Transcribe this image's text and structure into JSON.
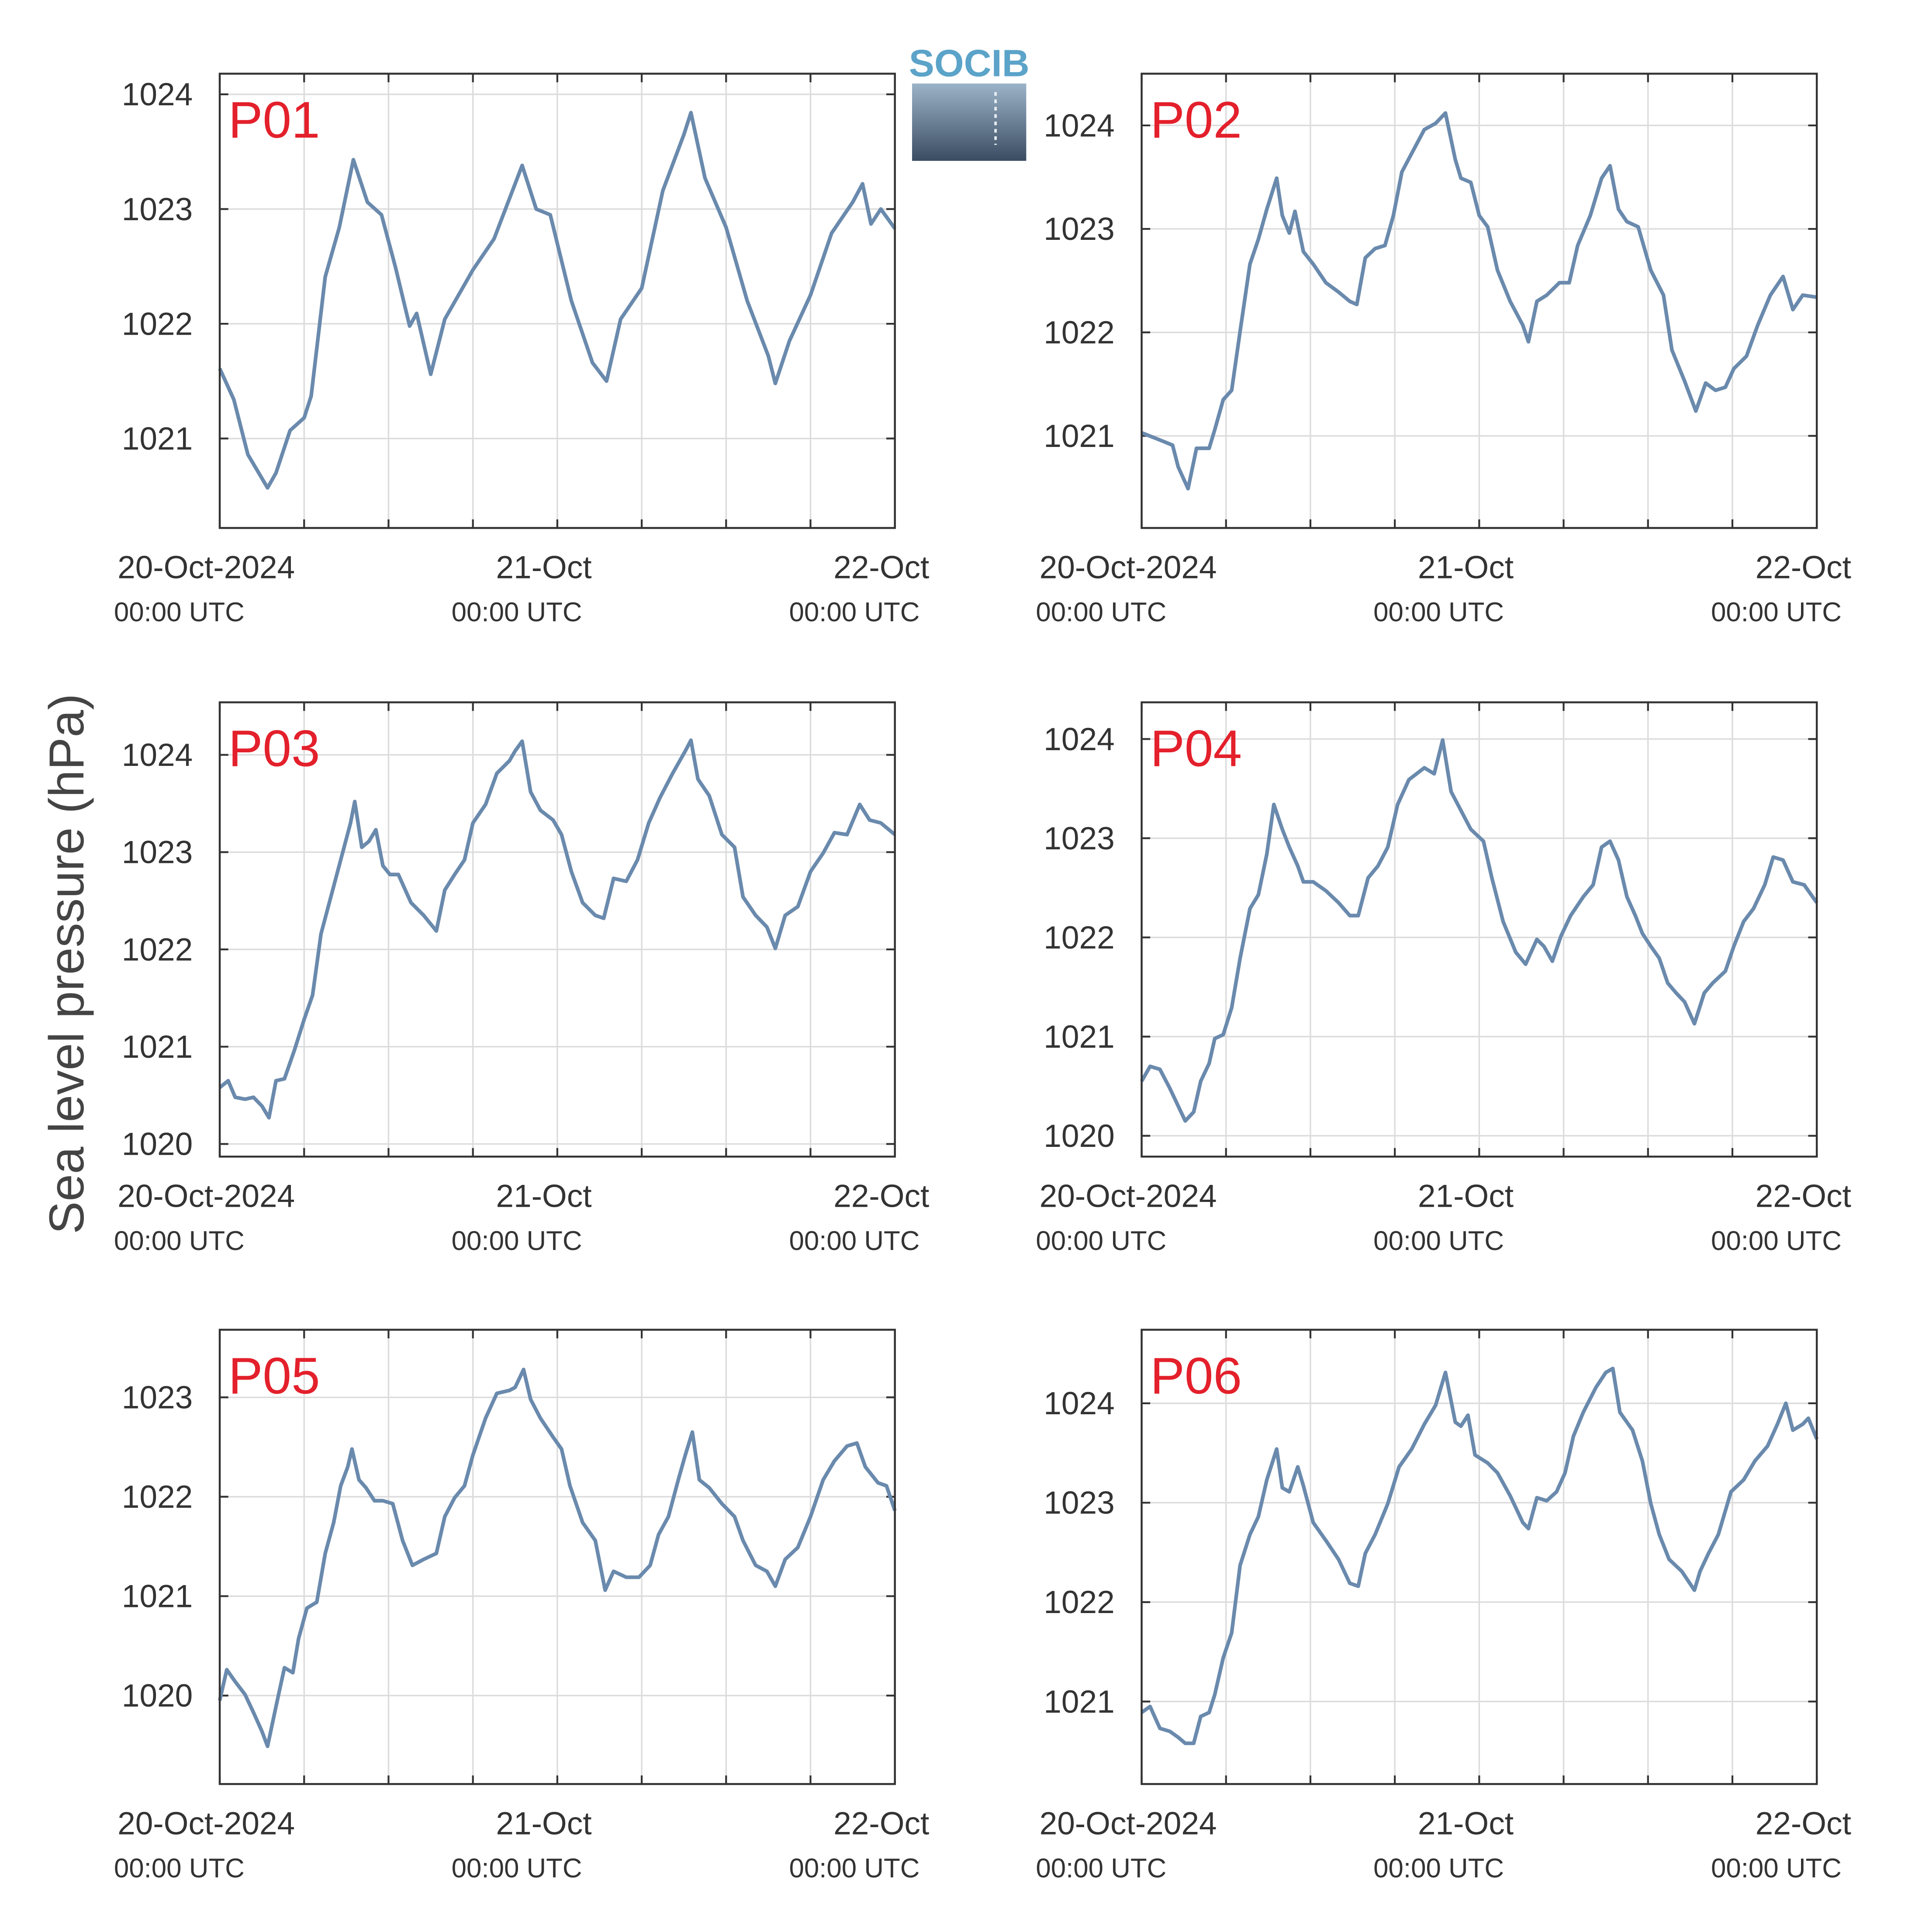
{
  "ylabel": "Sea level pressure (hPa)",
  "logo": "SOCIB",
  "chart_data": [
    {
      "type": "line",
      "title": "P01",
      "x": [
        0,
        1,
        2,
        3.4,
        4,
        5,
        6,
        6.5,
        7.5,
        8.5,
        9.5,
        10.5,
        11.5,
        12.5,
        13.5,
        14,
        15,
        16,
        18,
        19.5,
        21,
        21.5,
        22.5,
        23.5,
        25,
        26.5,
        27.5,
        28.5,
        30,
        31.5,
        33,
        33.5,
        34.5,
        36,
        37.5,
        39,
        39.5,
        40.5,
        42,
        43.5,
        45,
        45.7,
        46.3,
        47,
        48
      ],
      "series": [
        {
          "color": "#6a8aad",
          "values": [
            1021.61,
            1021.34,
            1020.86,
            1020.57,
            1020.7,
            1021.07,
            1021.18,
            1021.37,
            1022.41,
            1022.84,
            1023.43,
            1023.06,
            1022.95,
            1022.49,
            1021.98,
            1022.09,
            1021.56,
            1022.04,
            1022.47,
            1022.74,
            1023.22,
            1023.38,
            1023.0,
            1022.95,
            1022.2,
            1021.66,
            1021.5,
            1022.04,
            1022.31,
            1023.16,
            1023.65,
            1023.84,
            1023.27,
            1022.84,
            1022.2,
            1021.72,
            1021.48,
            1021.85,
            1022.25,
            1022.79,
            1023.06,
            1023.22,
            1022.87,
            1023.0,
            1022.83
          ]
        }
      ],
      "xlim": [
        0,
        48
      ],
      "xticks": [
        {
          "value": 0,
          "label": "20-Oct-2024",
          "sublabel": "00:00 UTC"
        },
        {
          "value": 24,
          "label": "21-Oct",
          "sublabel": "00:00 UTC"
        },
        {
          "value": 48,
          "label": "22-Oct",
          "sublabel": "00:00 UTC"
        }
      ],
      "xminorticks": [
        6,
        12,
        18,
        30,
        36,
        42
      ],
      "ylim": [
        1020.22,
        1024.18
      ],
      "yticks": [
        1021,
        1022,
        1023,
        1024
      ],
      "grid": true
    },
    {
      "type": "line",
      "title": "P02",
      "x": [
        0,
        1.3,
        2.2,
        2.6,
        3.3,
        3.9,
        4.8,
        5.2,
        5.8,
        6.4,
        7.0,
        7.7,
        8.3,
        8.9,
        9.6,
        10.0,
        10.5,
        10.9,
        11.5,
        12.2,
        13.1,
        14.0,
        14.8,
        15.3,
        15.9,
        16.6,
        17.3,
        17.9,
        18.5,
        19.2,
        20.1,
        20.9,
        21.6,
        22.3,
        22.7,
        23.4,
        24.0,
        24.6,
        25.3,
        26.2,
        27.1,
        27.5,
        28.1,
        28.8,
        29.7,
        30.4,
        31.0,
        31.9,
        32.7,
        33.3,
        33.9,
        34.5,
        35.3,
        36.2,
        37.1,
        37.7,
        38.6,
        39.4,
        40.1,
        40.8,
        41.5,
        42.1,
        43.0,
        43.8,
        44.7,
        45.6,
        46.3,
        47.0,
        48.0
      ],
      "series": [
        {
          "color": "#6a8aad",
          "values": [
            1021.03,
            1020.96,
            1020.91,
            1020.7,
            1020.49,
            1020.88,
            1020.88,
            1021.06,
            1021.35,
            1021.44,
            1022.01,
            1022.66,
            1022.9,
            1023.19,
            1023.49,
            1023.13,
            1022.96,
            1023.17,
            1022.78,
            1022.66,
            1022.48,
            1022.39,
            1022.3,
            1022.27,
            1022.72,
            1022.81,
            1022.84,
            1023.13,
            1023.55,
            1023.73,
            1023.96,
            1024.02,
            1024.12,
            1023.67,
            1023.49,
            1023.45,
            1023.13,
            1023.02,
            1022.6,
            1022.3,
            1022.07,
            1021.91,
            1022.3,
            1022.36,
            1022.48,
            1022.48,
            1022.84,
            1023.13,
            1023.49,
            1023.61,
            1023.19,
            1023.07,
            1023.02,
            1022.6,
            1022.36,
            1021.83,
            1021.53,
            1021.24,
            1021.51,
            1021.44,
            1021.47,
            1021.65,
            1021.77,
            1022.07,
            1022.36,
            1022.54,
            1022.22,
            1022.36,
            1022.34
          ]
        }
      ],
      "xlim": [
        0,
        48
      ],
      "xticks": [
        {
          "value": 0,
          "label": "20-Oct-2024",
          "sublabel": "00:00 UTC"
        },
        {
          "value": 24,
          "label": "21-Oct",
          "sublabel": "00:00 UTC"
        },
        {
          "value": 48,
          "label": "22-Oct",
          "sublabel": "00:00 UTC"
        }
      ],
      "xminorticks": [
        6,
        12,
        18,
        30,
        36,
        42
      ],
      "ylim": [
        1020.11,
        1024.5
      ],
      "yticks": [
        1021,
        1022,
        1023,
        1024
      ],
      "grid": true
    },
    {
      "type": "line",
      "title": "P03",
      "x": [
        0,
        0.6,
        1.1,
        1.8,
        2.4,
        3.0,
        3.5,
        4.0,
        4.6,
        5.3,
        6.0,
        6.6,
        7.2,
        7.9,
        8.6,
        9.3,
        9.6,
        10.1,
        10.6,
        11.1,
        11.6,
        12.1,
        12.7,
        13.6,
        14.5,
        15.4,
        16.0,
        16.7,
        17.4,
        18.0,
        18.9,
        19.7,
        20.6,
        21.0,
        21.5,
        22.1,
        22.8,
        23.7,
        24.3,
        25.0,
        25.8,
        26.7,
        27.3,
        28.0,
        28.9,
        29.7,
        30.5,
        31.3,
        32.2,
        33.1,
        33.5,
        34.0,
        34.8,
        35.7,
        36.6,
        37.2,
        38.1,
        38.9,
        39.5,
        40.2,
        41.1,
        42.0,
        42.9,
        43.7,
        44.6,
        45.5,
        46.2,
        47.0,
        48.0
      ],
      "series": [
        {
          "color": "#6a8aad",
          "values": [
            1020.58,
            1020.65,
            1020.48,
            1020.46,
            1020.48,
            1020.39,
            1020.27,
            1020.65,
            1020.67,
            1020.96,
            1021.28,
            1021.53,
            1022.16,
            1022.54,
            1022.92,
            1023.3,
            1023.52,
            1023.05,
            1023.11,
            1023.23,
            1022.86,
            1022.77,
            1022.77,
            1022.48,
            1022.35,
            1022.19,
            1022.61,
            1022.77,
            1022.92,
            1023.3,
            1023.49,
            1023.81,
            1023.94,
            1024.04,
            1024.14,
            1023.62,
            1023.43,
            1023.33,
            1023.18,
            1022.8,
            1022.48,
            1022.35,
            1022.32,
            1022.73,
            1022.7,
            1022.92,
            1023.3,
            1023.56,
            1023.81,
            1024.04,
            1024.15,
            1023.75,
            1023.58,
            1023.18,
            1023.05,
            1022.54,
            1022.35,
            1022.23,
            1022.01,
            1022.35,
            1022.44,
            1022.8,
            1022.99,
            1023.2,
            1023.18,
            1023.49,
            1023.33,
            1023.3,
            1023.18
          ]
        }
      ],
      "xlim": [
        0,
        48
      ],
      "xticks": [
        {
          "value": 0,
          "label": "20-Oct-2024",
          "sublabel": "00:00 UTC"
        },
        {
          "value": 24,
          "label": "21-Oct",
          "sublabel": "00:00 UTC"
        },
        {
          "value": 48,
          "label": "22-Oct",
          "sublabel": "00:00 UTC"
        }
      ],
      "xminorticks": [
        6,
        12,
        18,
        30,
        36,
        42
      ],
      "ylim": [
        1019.87,
        1024.54
      ],
      "yticks": [
        1020,
        1021,
        1022,
        1023,
        1024
      ],
      "grid": true
    },
    {
      "type": "line",
      "title": "P04",
      "x": [
        0,
        0.6,
        1.3,
        2.0,
        2.6,
        3.1,
        3.7,
        4.2,
        4.8,
        5.2,
        5.8,
        6.4,
        7.0,
        7.7,
        8.3,
        8.9,
        9.4,
        10.0,
        10.5,
        11.1,
        11.5,
        12.2,
        13.1,
        14.0,
        14.8,
        15.4,
        16.1,
        16.8,
        17.5,
        18.2,
        19.0,
        20.1,
        20.8,
        21.4,
        22.0,
        22.7,
        23.4,
        24.3,
        24.9,
        25.7,
        26.6,
        27.3,
        28.1,
        28.6,
        29.2,
        29.8,
        30.5,
        31.4,
        32.1,
        32.7,
        33.3,
        33.9,
        34.5,
        35.1,
        35.6,
        36.2,
        36.8,
        37.4,
        38.0,
        38.6,
        39.3,
        40.0,
        40.6,
        41.5,
        42.1,
        42.8,
        43.5,
        44.3,
        44.9,
        45.6,
        46.3,
        47.1,
        48.0
      ],
      "series": [
        {
          "color": "#6a8aad",
          "values": [
            1020.55,
            1020.7,
            1020.67,
            1020.48,
            1020.3,
            1020.15,
            1020.24,
            1020.55,
            1020.73,
            1020.98,
            1021.02,
            1021.29,
            1021.79,
            1022.29,
            1022.43,
            1022.84,
            1023.34,
            1023.09,
            1022.91,
            1022.72,
            1022.56,
            1022.56,
            1022.47,
            1022.35,
            1022.22,
            1022.22,
            1022.6,
            1022.72,
            1022.91,
            1023.34,
            1023.59,
            1023.71,
            1023.65,
            1023.99,
            1023.47,
            1023.28,
            1023.09,
            1022.97,
            1022.6,
            1022.16,
            1021.85,
            1021.73,
            1021.98,
            1021.91,
            1021.76,
            1022.01,
            1022.22,
            1022.41,
            1022.53,
            1022.91,
            1022.97,
            1022.78,
            1022.41,
            1022.22,
            1022.04,
            1021.91,
            1021.79,
            1021.54,
            1021.44,
            1021.35,
            1021.13,
            1021.44,
            1021.54,
            1021.66,
            1021.91,
            1022.16,
            1022.29,
            1022.53,
            1022.81,
            1022.78,
            1022.56,
            1022.53,
            1022.35
          ]
        }
      ],
      "xlim": [
        0,
        48
      ],
      "xticks": [
        {
          "value": 0,
          "label": "20-Oct-2024",
          "sublabel": "00:00 UTC"
        },
        {
          "value": 24,
          "label": "21-Oct",
          "sublabel": "00:00 UTC"
        },
        {
          "value": 48,
          "label": "22-Oct",
          "sublabel": "00:00 UTC"
        }
      ],
      "xminorticks": [
        6,
        12,
        18,
        30,
        36,
        42
      ],
      "ylim": [
        1019.79,
        1024.37
      ],
      "yticks": [
        1020,
        1021,
        1022,
        1023,
        1024
      ],
      "grid": true
    },
    {
      "type": "line",
      "title": "P05",
      "x": [
        0,
        0.5,
        1.1,
        1.8,
        2.4,
        3.0,
        3.4,
        4.0,
        4.6,
        5.2,
        5.6,
        6.2,
        6.9,
        7.5,
        8.1,
        8.6,
        9.1,
        9.4,
        9.9,
        10.4,
        11.0,
        11.6,
        12.3,
        13.0,
        13.7,
        14.5,
        15.4,
        16.0,
        16.7,
        17.4,
        18.0,
        18.9,
        19.7,
        20.6,
        21.0,
        21.6,
        22.1,
        22.8,
        23.7,
        24.3,
        24.9,
        25.8,
        26.7,
        27.4,
        28.0,
        28.9,
        29.8,
        30.6,
        31.2,
        31.9,
        32.6,
        33.1,
        33.6,
        34.1,
        34.8,
        35.7,
        36.6,
        37.2,
        38.1,
        38.9,
        39.5,
        40.2,
        41.1,
        42.0,
        42.9,
        43.7,
        44.6,
        45.3,
        45.9,
        46.8,
        47.4,
        48.0
      ],
      "series": [
        {
          "color": "#6a8aad",
          "values": [
            1019.95,
            1020.26,
            1020.14,
            1020.01,
            1019.83,
            1019.64,
            1019.49,
            1019.89,
            1020.28,
            1020.23,
            1020.57,
            1020.88,
            1020.94,
            1021.43,
            1021.74,
            1022.11,
            1022.3,
            1022.48,
            1022.17,
            1022.09,
            1021.96,
            1021.96,
            1021.93,
            1021.56,
            1021.31,
            1021.37,
            1021.43,
            1021.8,
            1021.99,
            1022.11,
            1022.42,
            1022.79,
            1023.04,
            1023.07,
            1023.1,
            1023.28,
            1022.98,
            1022.79,
            1022.6,
            1022.48,
            1022.11,
            1021.74,
            1021.56,
            1021.06,
            1021.25,
            1021.19,
            1021.19,
            1021.31,
            1021.62,
            1021.8,
            1022.17,
            1022.42,
            1022.65,
            1022.17,
            1022.09,
            1021.93,
            1021.8,
            1021.56,
            1021.31,
            1021.25,
            1021.1,
            1021.37,
            1021.49,
            1021.8,
            1022.17,
            1022.36,
            1022.51,
            1022.54,
            1022.3,
            1022.14,
            1022.11,
            1021.86
          ]
        }
      ],
      "xlim": [
        0,
        48
      ],
      "xticks": [
        {
          "value": 0,
          "label": "20-Oct-2024",
          "sublabel": "00:00 UTC"
        },
        {
          "value": 24,
          "label": "21-Oct",
          "sublabel": "00:00 UTC"
        },
        {
          "value": 48,
          "label": "22-Oct",
          "sublabel": "00:00 UTC"
        }
      ],
      "xminorticks": [
        6,
        12,
        18,
        30,
        36,
        42
      ],
      "ylim": [
        1019.11,
        1023.68
      ],
      "yticks": [
        1020,
        1021,
        1022,
        1023
      ],
      "grid": true
    },
    {
      "type": "line",
      "title": "P06",
      "x": [
        0,
        0.6,
        1.3,
        2.0,
        2.6,
        3.1,
        3.7,
        4.2,
        4.8,
        5.2,
        5.8,
        6.4,
        7.0,
        7.7,
        8.3,
        8.9,
        9.6,
        10.0,
        10.5,
        11.1,
        11.5,
        12.2,
        13.1,
        14.0,
        14.8,
        15.4,
        15.9,
        16.6,
        17.5,
        18.3,
        19.2,
        20.1,
        20.9,
        21.6,
        22.3,
        22.7,
        23.2,
        23.7,
        24.6,
        25.3,
        26.2,
        27.1,
        27.5,
        28.1,
        28.8,
        29.5,
        30.1,
        30.7,
        31.4,
        32.3,
        33.0,
        33.5,
        34.0,
        34.9,
        35.6,
        36.2,
        36.8,
        37.5,
        38.4,
        39.3,
        39.7,
        40.3,
        41.0,
        41.9,
        42.8,
        43.6,
        44.5,
        45.2,
        45.8,
        46.3,
        47.0,
        47.4,
        48.0
      ],
      "series": [
        {
          "color": "#6a8aad",
          "values": [
            1020.89,
            1020.95,
            1020.73,
            1020.7,
            1020.64,
            1020.58,
            1020.58,
            1020.85,
            1020.89,
            1021.07,
            1021.44,
            1021.69,
            1022.37,
            1022.68,
            1022.86,
            1023.23,
            1023.54,
            1023.15,
            1023.11,
            1023.36,
            1023.17,
            1022.8,
            1022.62,
            1022.43,
            1022.19,
            1022.16,
            1022.49,
            1022.68,
            1022.99,
            1023.36,
            1023.54,
            1023.79,
            1023.98,
            1024.31,
            1023.81,
            1023.77,
            1023.88,
            1023.48,
            1023.4,
            1023.3,
            1023.07,
            1022.8,
            1022.74,
            1023.05,
            1023.02,
            1023.11,
            1023.3,
            1023.67,
            1023.91,
            1024.16,
            1024.31,
            1024.35,
            1023.91,
            1023.73,
            1023.42,
            1022.99,
            1022.68,
            1022.43,
            1022.31,
            1022.12,
            1022.31,
            1022.49,
            1022.68,
            1023.11,
            1023.23,
            1023.42,
            1023.57,
            1023.79,
            1024.0,
            1023.73,
            1023.79,
            1023.85,
            1023.64
          ]
        }
      ],
      "xlim": [
        0,
        48
      ],
      "xticks": [
        {
          "value": 0,
          "label": "20-Oct-2024",
          "sublabel": "00:00 UTC"
        },
        {
          "value": 24,
          "label": "21-Oct",
          "sublabel": "00:00 UTC"
        },
        {
          "value": 48,
          "label": "22-Oct",
          "sublabel": "00:00 UTC"
        }
      ],
      "xminorticks": [
        6,
        12,
        18,
        30,
        36,
        42
      ],
      "ylim": [
        1020.17,
        1024.74
      ],
      "yticks": [
        1021,
        1022,
        1023,
        1024
      ],
      "grid": true
    }
  ]
}
